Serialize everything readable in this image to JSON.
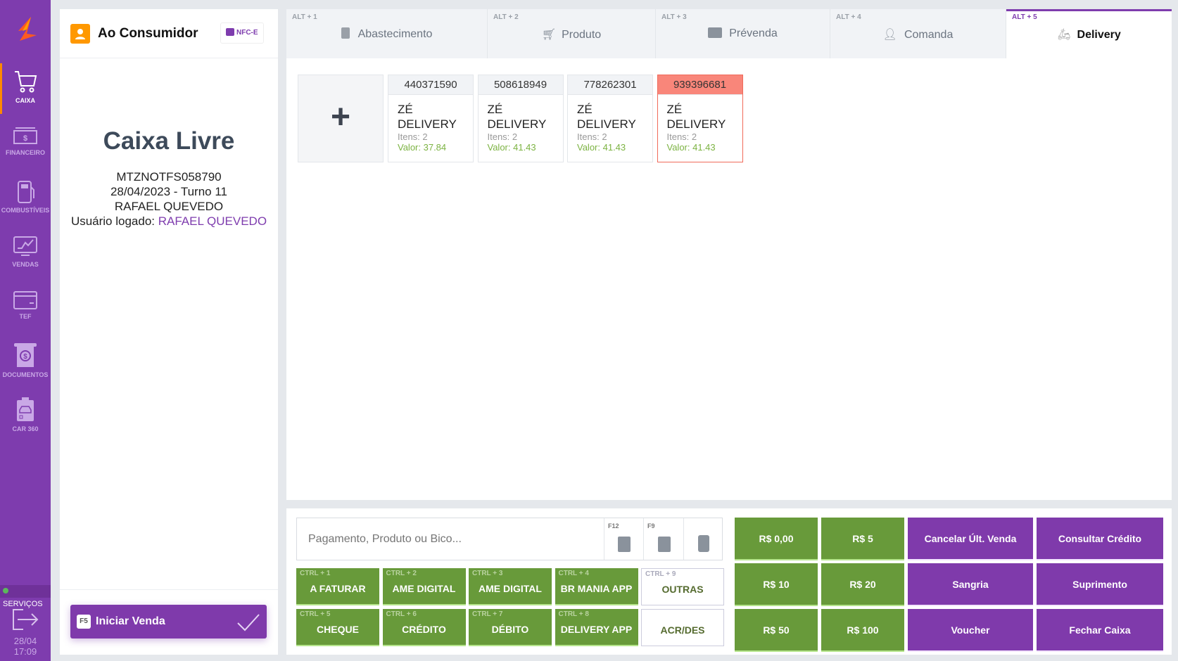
{
  "colors": {
    "brand": "#7e3cae",
    "green": "#689a3a",
    "alert": "#f9867a",
    "accent": "#ff8a00"
  },
  "sidebar": {
    "items": [
      {
        "label": "CAIXA",
        "icon": "cart-icon"
      },
      {
        "label": "FINANCEIRO",
        "icon": "cash-icon"
      },
      {
        "label": "COMBUSTÍVEIS",
        "icon": "fuel-pump-icon"
      },
      {
        "label": "VENDAS",
        "icon": "sales-chart-icon"
      },
      {
        "label": "TEF",
        "icon": "credit-card-icon"
      },
      {
        "label": "DOCUMENTOS",
        "icon": "document-money-icon"
      },
      {
        "label": "CAR 360",
        "icon": "car-clipboard-icon"
      }
    ],
    "services": "SERVIÇOS",
    "date": "28/04",
    "time": "17:09"
  },
  "left": {
    "customer": "Ao Consumidor",
    "nfce": "NFC-E",
    "status": "Caixa Livre",
    "terminal": "MTZNOTFS058790",
    "shift": "28/04/2023 - Turno 11",
    "operator": "RAFAEL QUEVEDO",
    "logged_label": "Usuário logado:",
    "logged_user": "RAFAEL QUEVEDO",
    "start_key": "F5",
    "start_label": "Iniciar Venda"
  },
  "tabs": [
    {
      "key": "ALT + 1",
      "label": "Abastecimento"
    },
    {
      "key": "ALT + 2",
      "label": "Produto"
    },
    {
      "key": "ALT + 3",
      "label": "Prévenda"
    },
    {
      "key": "ALT + 4",
      "label": "Comanda"
    },
    {
      "key": "ALT + 5",
      "label": "Delivery",
      "active": true
    }
  ],
  "orders": [
    {
      "id": "440371590",
      "name": "ZÉ DELIVERY",
      "items": "Itens: 2",
      "value": "Valor: 37.84"
    },
    {
      "id": "508618949",
      "name": "ZÉ DELIVERY",
      "items": "Itens: 2",
      "value": "Valor: 41.43"
    },
    {
      "id": "778262301",
      "name": "ZÉ DELIVERY",
      "items": "Itens: 2",
      "value": "Valor: 41.43"
    },
    {
      "id": "939396681",
      "name": "ZÉ DELIVERY",
      "items": "Itens: 2",
      "value": "Valor: 41.43",
      "alert": true
    }
  ],
  "input": {
    "placeholder": "Pagamento, Produto ou Bico...",
    "f12": "F12",
    "f9": "F9"
  },
  "payments": [
    {
      "key": "CTRL + 1",
      "label": "A FATURAR"
    },
    {
      "key": "CTRL + 2",
      "label": "AME DIGITAL"
    },
    {
      "key": "CTRL + 3",
      "label": "AME DIGITAL"
    },
    {
      "key": "CTRL + 4",
      "label": "BR MANIA APP"
    },
    {
      "key": "CTRL + 9",
      "label": "OUTRAS"
    },
    {
      "key": "CTRL + 5",
      "label": "CHEQUE"
    },
    {
      "key": "CTRL + 6",
      "label": "CRÉDITO"
    },
    {
      "key": "CTRL + 7",
      "label": "DÉBITO"
    },
    {
      "key": "CTRL + 8",
      "label": "DELIVERY APP"
    },
    {
      "key": "",
      "label": "ACR/DES"
    }
  ],
  "quick": [
    "R$ 0,00",
    "R$ 5",
    "Cancelar Últ. Venda",
    "Consultar Crédito",
    "R$ 10",
    "R$ 20",
    "Sangria",
    "Suprimento",
    "R$ 50",
    "R$ 100",
    "Voucher",
    "Fechar Caixa"
  ]
}
